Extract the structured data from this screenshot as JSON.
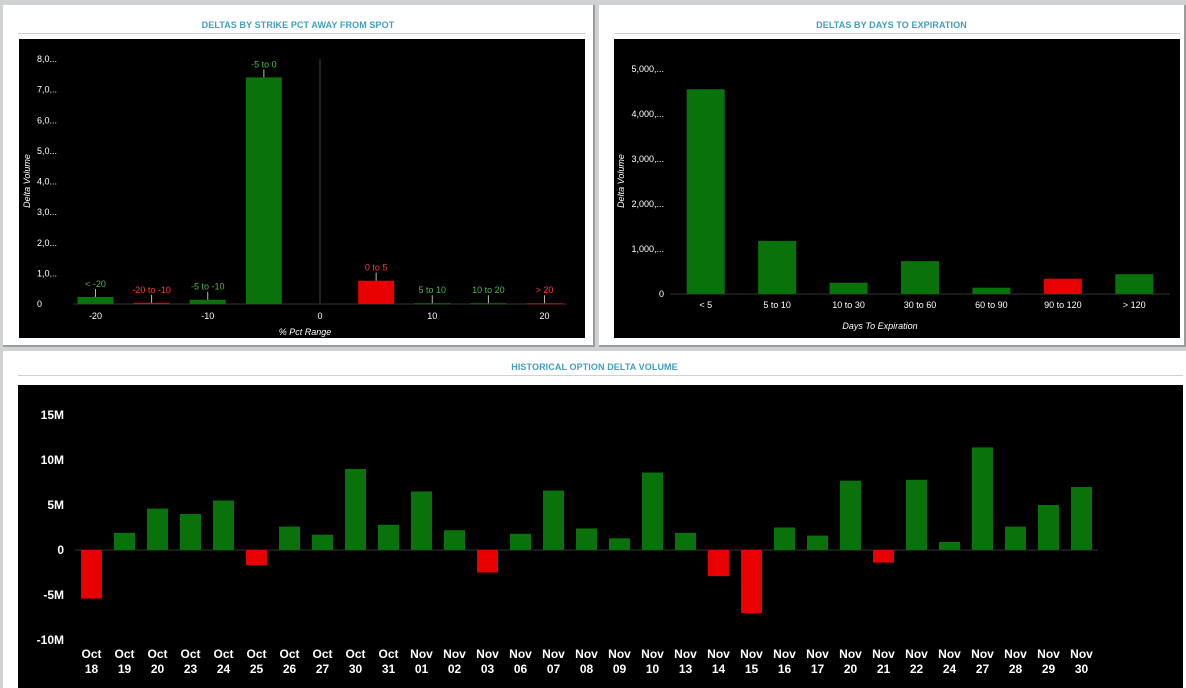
{
  "panels": {
    "strike": {
      "title": "DELTAS BY STRIKE PCT AWAY FROM SPOT"
    },
    "days": {
      "title": "DELTAS BY DAYS TO EXPIRATION"
    },
    "history": {
      "title": "HISTORICAL OPTION DELTA VOLUME"
    }
  },
  "colors": {
    "positive": "#0a720a",
    "negative": "#e80000",
    "positive_label": "#4fb84f",
    "negative_label": "#ff3b3b"
  },
  "chart_data": [
    {
      "type": "bar",
      "title": "DELTAS BY STRIKE PCT AWAY FROM SPOT",
      "xlabel": "% Pct Range",
      "ylabel": "Delta Volume",
      "ylim": [
        0,
        8000
      ],
      "y_ticks": [
        "0",
        "1,0...",
        "2,0...",
        "3,0...",
        "4,0...",
        "5,0...",
        "6,0...",
        "7,0...",
        "8,0..."
      ],
      "xlim": [
        -22,
        22
      ],
      "x_ticks": [
        "-20",
        "-10",
        "0",
        "10",
        "20"
      ],
      "bars": [
        {
          "label": "< -20",
          "center": -20,
          "value": 230,
          "sign": "positive"
        },
        {
          "label": "-20 to -10",
          "center": -15,
          "value": 40,
          "sign": "negative"
        },
        {
          "label": "-5 to -10",
          "center": -10,
          "value": 140,
          "sign": "positive"
        },
        {
          "label": "-5 to 0",
          "center": -5,
          "value": 7400,
          "sign": "positive"
        },
        {
          "label": "0 to 5",
          "center": 5,
          "value": 760,
          "sign": "negative"
        },
        {
          "label": "5 to 10",
          "center": 10,
          "value": 25,
          "sign": "positive"
        },
        {
          "label": "10 to 20",
          "center": 15,
          "value": 25,
          "sign": "positive"
        },
        {
          "label": "> 20",
          "center": 20,
          "value": 25,
          "sign": "negative"
        }
      ],
      "grid": false
    },
    {
      "type": "bar",
      "title": "DELTAS BY DAYS TO EXPIRATION",
      "xlabel": "Days To Expiration",
      "ylabel": "Delta Volume",
      "ylim": [
        0,
        5000
      ],
      "y_ticks": [
        "0",
        "1,000,...",
        "2,000,...",
        "3,000,...",
        "4,000,...",
        "5,000,..."
      ],
      "categories": [
        "< 5",
        "5 to 10",
        "10 to 30",
        "30 to 60",
        "60 to 90",
        "90 to 120",
        "> 120"
      ],
      "values": [
        4550,
        1180,
        250,
        730,
        140,
        340,
        440
      ],
      "signs": [
        "positive",
        "positive",
        "positive",
        "positive",
        "positive",
        "negative",
        "positive"
      ],
      "grid": false
    },
    {
      "type": "bar",
      "title": "HISTORICAL OPTION DELTA VOLUME",
      "xlabel": "",
      "ylabel": "",
      "ylim": [
        -10,
        15
      ],
      "y_ticks": [
        "-10M",
        "-5M",
        "0",
        "5M",
        "10M",
        "15M"
      ],
      "unit": "M",
      "categories": [
        [
          "Oct",
          "18"
        ],
        [
          "Oct",
          "19"
        ],
        [
          "Oct",
          "20"
        ],
        [
          "Oct",
          "23"
        ],
        [
          "Oct",
          "24"
        ],
        [
          "Oct",
          "25"
        ],
        [
          "Oct",
          "26"
        ],
        [
          "Oct",
          "27"
        ],
        [
          "Oct",
          "30"
        ],
        [
          "Oct",
          "31"
        ],
        [
          "Nov",
          "01"
        ],
        [
          "Nov",
          "02"
        ],
        [
          "Nov",
          "03"
        ],
        [
          "Nov",
          "06"
        ],
        [
          "Nov",
          "07"
        ],
        [
          "Nov",
          "08"
        ],
        [
          "Nov",
          "09"
        ],
        [
          "Nov",
          "10"
        ],
        [
          "Nov",
          "13"
        ],
        [
          "Nov",
          "14"
        ],
        [
          "Nov",
          "15"
        ],
        [
          "Nov",
          "16"
        ],
        [
          "Nov",
          "17"
        ],
        [
          "Nov",
          "20"
        ],
        [
          "Nov",
          "21"
        ],
        [
          "Nov",
          "22"
        ],
        [
          "Nov",
          "24"
        ],
        [
          "Nov",
          "27"
        ],
        [
          "Nov",
          "28"
        ],
        [
          "Nov",
          "29"
        ],
        [
          "Nov",
          "30"
        ]
      ],
      "values": [
        -5.4,
        1.9,
        4.6,
        4.0,
        5.5,
        -1.7,
        2.6,
        1.7,
        9.0,
        2.8,
        6.5,
        2.2,
        -2.5,
        1.8,
        6.6,
        2.4,
        1.3,
        8.6,
        1.9,
        -2.9,
        -7.0,
        2.5,
        1.6,
        7.7,
        -1.4,
        7.8,
        0.9,
        11.4,
        2.6,
        5.0,
        7.0
      ],
      "grid": false
    }
  ]
}
